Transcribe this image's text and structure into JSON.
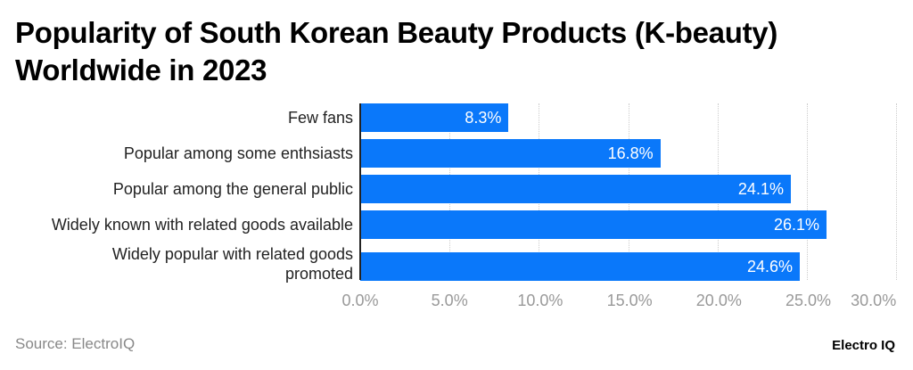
{
  "title": "Popularity of South Korean Beauty Products (K-beauty) Worldwide in 2023",
  "source": "Source: ElectroIQ",
  "logo": "Electro IQ",
  "chart_data": {
    "type": "bar",
    "orientation": "horizontal",
    "title": "Popularity of South Korean Beauty Products (K-beauty) Worldwide in 2023",
    "categories": [
      "Few fans",
      "Popular among some enthsiasts",
      "Popular among the general public",
      "Widely known with related goods available",
      "Widely popular with related goods promoted"
    ],
    "values": [
      8.3,
      16.8,
      24.1,
      26.1,
      24.6
    ],
    "data_labels": [
      "8.3%",
      "16.8%",
      "24.1%",
      "26.1%",
      "24.6%"
    ],
    "xlim": [
      0,
      30
    ],
    "ticks": [
      "0.0%",
      "5.0%",
      "10.0%",
      "15.0%",
      "20.0%",
      "25.0%",
      "30.0%"
    ],
    "tick_values": [
      0,
      5,
      10,
      15,
      20,
      25,
      30
    ],
    "grid": true,
    "bar_color": "#0a78fa"
  }
}
